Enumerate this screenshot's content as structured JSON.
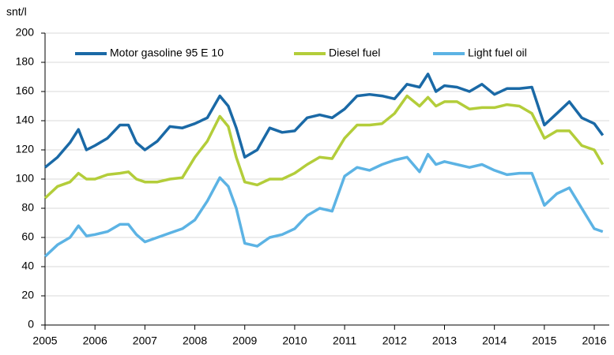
{
  "chart_data": {
    "type": "line",
    "y_label": "snt/l",
    "x": [
      2005.0,
      2005.25,
      2005.5,
      2005.67,
      2005.83,
      2006.0,
      2006.25,
      2006.5,
      2006.67,
      2006.83,
      2007.0,
      2007.25,
      2007.5,
      2007.75,
      2008.0,
      2008.25,
      2008.5,
      2008.67,
      2008.83,
      2009.0,
      2009.25,
      2009.5,
      2009.75,
      2010.0,
      2010.25,
      2010.5,
      2010.75,
      2011.0,
      2011.25,
      2011.5,
      2011.75,
      2012.0,
      2012.25,
      2012.5,
      2012.67,
      2012.83,
      2013.0,
      2013.25,
      2013.5,
      2013.75,
      2014.0,
      2014.25,
      2014.5,
      2014.75,
      2015.0,
      2015.25,
      2015.5,
      2015.75,
      2016.0,
      2016.17
    ],
    "series": [
      {
        "name": "Motor gasoline 95 E 10",
        "color": "#1a69a6",
        "values": [
          108,
          115,
          125,
          134,
          120,
          123,
          128,
          137,
          137,
          125,
          120,
          126,
          136,
          135,
          138,
          142,
          157,
          150,
          135,
          115,
          120,
          135,
          132,
          133,
          142,
          144,
          142,
          148,
          157,
          158,
          157,
          155,
          165,
          163,
          172,
          160,
          164,
          163,
          160,
          165,
          158,
          162,
          162,
          163,
          137,
          145,
          153,
          142,
          138,
          130
        ]
      },
      {
        "name": "Diesel fuel",
        "color": "#b3cd3a",
        "values": [
          87,
          95,
          98,
          104,
          100,
          100,
          103,
          104,
          105,
          100,
          98,
          98,
          100,
          101,
          115,
          126,
          143,
          136,
          115,
          98,
          96,
          100,
          100,
          104,
          110,
          115,
          114,
          128,
          137,
          137,
          138,
          145,
          157,
          150,
          156,
          150,
          153,
          153,
          148,
          149,
          149,
          151,
          150,
          145,
          128,
          133,
          133,
          123,
          120,
          110
        ]
      },
      {
        "name": "Light fuel oil",
        "color": "#5cb3e4",
        "values": [
          47,
          55,
          60,
          68,
          61,
          62,
          64,
          69,
          69,
          62,
          57,
          60,
          63,
          66,
          72,
          85,
          101,
          95,
          80,
          56,
          54,
          60,
          62,
          66,
          75,
          80,
          78,
          102,
          108,
          106,
          110,
          113,
          115,
          105,
          117,
          110,
          112,
          110,
          108,
          110,
          106,
          103,
          104,
          104,
          82,
          90,
          94,
          80,
          66,
          64
        ]
      }
    ],
    "xlim": [
      2005,
      2016.3
    ],
    "xticks": [
      2005,
      2006,
      2007,
      2008,
      2009,
      2010,
      2011,
      2012,
      2013,
      2014,
      2015,
      2016
    ],
    "ylim": [
      0,
      200
    ],
    "yticks": [
      0,
      20,
      40,
      60,
      80,
      100,
      120,
      140,
      160,
      180,
      200
    ],
    "grid": true
  }
}
